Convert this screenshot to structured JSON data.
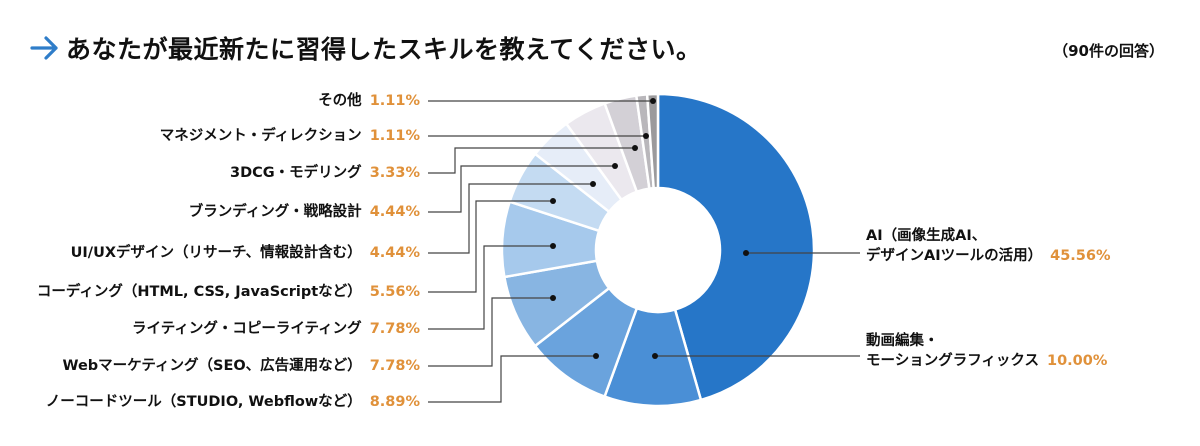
{
  "header": {
    "title": "あなたが最近新たに習得したスキルを教えてください。",
    "response_count": "（90件の回答）",
    "arrow_icon": "arrow-right-icon",
    "accent_color": "#2f7dc9"
  },
  "chart_data": {
    "type": "pie",
    "subtype": "donut",
    "title": "あなたが最近新たに習得したスキルを教えてください。",
    "note": "（90件の回答）",
    "percent_color": "#e0913a",
    "slices": [
      {
        "label": "AI（画像生成AI、デザインAIツールの活用）",
        "label_lines": [
          "AI（画像生成AI、",
          "デザインAIツールの活用）"
        ],
        "value": 45.56,
        "display": "45.56%",
        "color": "#2676c8"
      },
      {
        "label": "動画編集・モーショングラフィックス",
        "label_lines": [
          "動画編集・",
          "モーショングラフィックス"
        ],
        "value": 10.0,
        "display": "10.00%",
        "color": "#4a8fd6"
      },
      {
        "label": "ノーコードツール（STUDIO, Webflowなど）",
        "value": 8.89,
        "display": "8.89%",
        "color": "#6aa3dd"
      },
      {
        "label": "Webマーケティング（SEO、広告運用など）",
        "value": 7.78,
        "display": "7.78%",
        "color": "#88b5e2"
      },
      {
        "label": "ライティング・コピーライティング",
        "value": 7.78,
        "display": "7.78%",
        "color": "#a6c9ec"
      },
      {
        "label": "コーディング（HTML, CSS, JavaScriptなど）",
        "value": 5.56,
        "display": "5.56%",
        "color": "#c4dbf2"
      },
      {
        "label": "UI/UXデザイン（リサーチ、情報設計含む）",
        "value": 4.44,
        "display": "4.44%",
        "color": "#e6edf8"
      },
      {
        "label": "ブランディング・戦略設計",
        "value": 4.44,
        "display": "4.44%",
        "color": "#ebe8ee"
      },
      {
        "label": "3DCG・モデリング",
        "value": 3.33,
        "display": "3.33%",
        "color": "#d3d0d6"
      },
      {
        "label": "マネジメント・ディレクション",
        "value": 1.11,
        "display": "1.11%",
        "color": "#b9b7bb"
      },
      {
        "label": "その他",
        "value": 1.11,
        "display": "1.11%",
        "color": "#9b9a9c"
      }
    ]
  }
}
